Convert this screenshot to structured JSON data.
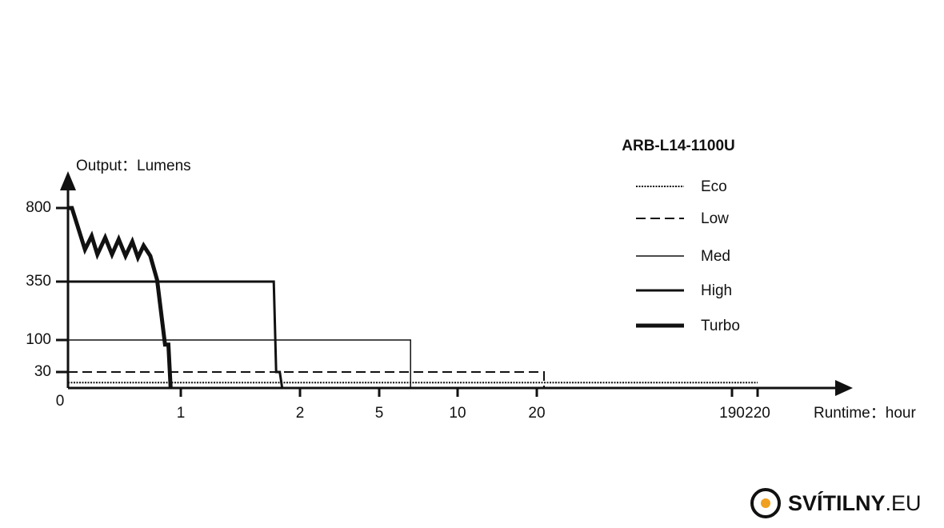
{
  "chart_data": {
    "type": "line",
    "title": "ARB-L14-1100U",
    "y_label": "Output：Lumens",
    "x_label": "Runtime：hour",
    "xlim": [
      0,
      220
    ],
    "xticks": [
      0,
      1,
      2,
      5,
      10,
      20,
      190,
      220
    ],
    "ylim": [
      0,
      800
    ],
    "yticks": [
      30,
      100,
      350,
      800
    ],
    "series": [
      {
        "name": "Eco",
        "color": "#111111",
        "dash": "dotted",
        "width": 2,
        "x": [
          0,
          220
        ],
        "values": [
          10,
          10
        ]
      },
      {
        "name": "Low",
        "color": "#111111",
        "dash": "dashed",
        "width": 2,
        "x": [
          0,
          26.3,
          26.3
        ],
        "values": [
          30,
          30,
          0
        ]
      },
      {
        "name": "Med",
        "color": "#111111",
        "dash": "solid",
        "width": 1.5,
        "x": [
          0,
          7,
          7
        ],
        "values": [
          100,
          100,
          0
        ]
      },
      {
        "name": "High",
        "color": "#111111",
        "dash": "solid",
        "width": 3,
        "x": [
          0,
          1.78,
          1.8,
          1.83,
          1.85
        ],
        "values": [
          350,
          350,
          30,
          30,
          0
        ]
      },
      {
        "name": "Turbo",
        "color": "#111111",
        "dash": "solid",
        "width": 5,
        "x": [
          0,
          0.035,
          0.15,
          0.21,
          0.26,
          0.33,
          0.39,
          0.45,
          0.51,
          0.57,
          0.62,
          0.67,
          0.73,
          0.79,
          0.86,
          0.89,
          0.91
        ],
        "values": [
          800,
          800,
          546,
          629,
          516,
          619,
          516,
          609,
          507,
          595,
          497,
          570,
          507,
          360,
          90,
          90,
          0
        ]
      }
    ]
  },
  "watermark": {
    "brand": "SVÍTILNY",
    "suffix": ".EU"
  }
}
